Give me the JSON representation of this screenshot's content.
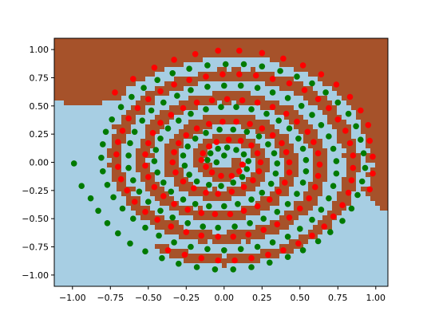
{
  "chart_data": {
    "type": "scatter",
    "description_kind": "two interleaved spirals over a binary classifier decision region map",
    "xlim": [
      -1.12,
      1.08
    ],
    "ylim": [
      -1.1,
      1.1
    ],
    "x_ticks": [
      -1.0,
      -0.75,
      -0.5,
      -0.25,
      0.0,
      0.25,
      0.5,
      0.75,
      1.0
    ],
    "x_tick_labels": [
      "−1.00",
      "−0.75",
      "−0.50",
      "−0.25",
      "0.00",
      "0.25",
      "0.50",
      "0.75",
      "1.00"
    ],
    "y_ticks": [
      1.0,
      0.75,
      0.5,
      0.25,
      0.0,
      -0.25,
      -0.5,
      -0.75,
      -1.0
    ],
    "y_tick_labels": [
      "1.00",
      "0.75",
      "0.50",
      "0.25",
      "0.00",
      "−0.25",
      "−0.50",
      "−0.75",
      "−1.00"
    ],
    "grid": false,
    "legend": "none",
    "colors": {
      "region_class_red": "#a6522a",
      "region_class_green": "#a7cee3",
      "points_red": "#ff0000",
      "points_green": "#007a00"
    },
    "series": [
      {
        "color_key": "points_red",
        "points": [
          [
            0.12,
            -0.02
          ],
          [
            0.1,
            -0.08
          ],
          [
            0.05,
            -0.12
          ],
          [
            -0.02,
            -0.12
          ],
          [
            -0.08,
            -0.09
          ],
          [
            -0.12,
            -0.04
          ],
          [
            -0.15,
            0.02
          ],
          [
            -0.14,
            0.08
          ],
          [
            -0.1,
            0.14
          ],
          [
            -0.05,
            0.18
          ],
          [
            0.03,
            0.2
          ],
          [
            0.11,
            0.19
          ],
          [
            0.18,
            0.15
          ],
          [
            0.22,
            0.08
          ],
          [
            0.24,
            0.0
          ],
          [
            0.23,
            -0.08
          ],
          [
            0.19,
            -0.16
          ],
          [
            0.13,
            -0.22
          ],
          [
            0.05,
            -0.26
          ],
          [
            -0.04,
            -0.28
          ],
          [
            -0.12,
            -0.27
          ],
          [
            -0.2,
            -0.23
          ],
          [
            -0.27,
            -0.17
          ],
          [
            -0.32,
            -0.09
          ],
          [
            -0.34,
            0.0
          ],
          [
            -0.33,
            0.09
          ],
          [
            -0.3,
            0.17
          ],
          [
            -0.25,
            0.24
          ],
          [
            -0.18,
            0.3
          ],
          [
            -0.1,
            0.34
          ],
          [
            -0.01,
            0.36
          ],
          [
            0.08,
            0.36
          ],
          [
            0.17,
            0.34
          ],
          [
            0.25,
            0.3
          ],
          [
            0.32,
            0.24
          ],
          [
            0.38,
            0.17
          ],
          [
            0.41,
            0.09
          ],
          [
            0.43,
            0.0
          ],
          [
            0.43,
            -0.09
          ],
          [
            0.4,
            -0.18
          ],
          [
            0.36,
            -0.26
          ],
          [
            0.3,
            -0.33
          ],
          [
            0.22,
            -0.39
          ],
          [
            0.13,
            -0.43
          ],
          [
            0.04,
            -0.46
          ],
          [
            -0.06,
            -0.46
          ],
          [
            -0.15,
            -0.45
          ],
          [
            -0.24,
            -0.42
          ],
          [
            -0.33,
            -0.37
          ],
          [
            -0.4,
            -0.3
          ],
          [
            -0.46,
            -0.22
          ],
          [
            -0.5,
            -0.13
          ],
          [
            -0.52,
            -0.03
          ],
          [
            -0.52,
            0.07
          ],
          [
            -0.5,
            0.17
          ],
          [
            -0.47,
            0.26
          ],
          [
            -0.42,
            0.35
          ],
          [
            -0.35,
            0.42
          ],
          [
            -0.27,
            0.48
          ],
          [
            -0.18,
            0.53
          ],
          [
            -0.08,
            0.55
          ],
          [
            0.02,
            0.56
          ],
          [
            0.12,
            0.55
          ],
          [
            0.22,
            0.53
          ],
          [
            0.32,
            0.49
          ],
          [
            0.41,
            0.43
          ],
          [
            0.48,
            0.36
          ],
          [
            0.55,
            0.27
          ],
          [
            0.59,
            0.18
          ],
          [
            0.62,
            0.08
          ],
          [
            0.63,
            -0.02
          ],
          [
            0.62,
            -0.12
          ],
          [
            0.6,
            -0.22
          ],
          [
            0.56,
            -0.32
          ],
          [
            0.5,
            -0.41
          ],
          [
            0.43,
            -0.49
          ],
          [
            0.35,
            -0.55
          ],
          [
            0.26,
            -0.6
          ],
          [
            0.16,
            -0.64
          ],
          [
            0.06,
            -0.66
          ],
          [
            -0.04,
            -0.66
          ],
          [
            -0.15,
            -0.65
          ],
          [
            -0.25,
            -0.62
          ],
          [
            -0.35,
            -0.57
          ],
          [
            -0.44,
            -0.51
          ],
          [
            -0.52,
            -0.44
          ],
          [
            -0.59,
            -0.35
          ],
          [
            -0.64,
            -0.25
          ],
          [
            -0.68,
            -0.15
          ],
          [
            -0.7,
            -0.04
          ],
          [
            -0.71,
            0.07
          ],
          [
            -0.7,
            0.18
          ],
          [
            -0.67,
            0.28
          ],
          [
            -0.63,
            0.39
          ],
          [
            -0.57,
            0.48
          ],
          [
            -0.5,
            0.56
          ],
          [
            -0.42,
            0.63
          ],
          [
            -0.33,
            0.69
          ],
          [
            -0.23,
            0.73
          ],
          [
            -0.12,
            0.76
          ],
          [
            -0.01,
            0.78
          ],
          [
            0.1,
            0.78
          ],
          [
            0.21,
            0.77
          ],
          [
            0.32,
            0.74
          ],
          [
            0.43,
            0.7
          ],
          [
            0.53,
            0.64
          ],
          [
            0.62,
            0.56
          ],
          [
            0.69,
            0.48
          ],
          [
            0.75,
            0.38
          ],
          [
            0.8,
            0.28
          ],
          [
            0.83,
            0.17
          ],
          [
            0.85,
            0.06
          ],
          [
            0.85,
            -0.05
          ],
          [
            0.84,
            -0.16
          ],
          [
            0.82,
            -0.27
          ],
          [
            0.78,
            -0.38
          ],
          [
            0.72,
            -0.48
          ],
          [
            0.66,
            -0.57
          ],
          [
            0.58,
            -0.65
          ],
          [
            0.49,
            -0.72
          ],
          [
            0.39,
            -0.78
          ],
          [
            0.29,
            -0.82
          ],
          [
            0.18,
            -0.85
          ],
          [
            0.07,
            -0.87
          ],
          [
            -0.04,
            -0.87
          ],
          [
            -0.15,
            -0.85
          ],
          [
            -0.26,
            -0.82
          ],
          [
            -0.37,
            -0.78
          ],
          [
            0.96,
            0.19
          ],
          [
            -0.72,
            0.62
          ],
          [
            -0.6,
            0.74
          ],
          [
            -0.46,
            0.84
          ],
          [
            -0.33,
            0.91
          ],
          [
            -0.19,
            0.96
          ],
          [
            -0.04,
            0.99
          ],
          [
            0.1,
            0.99
          ],
          [
            0.25,
            0.97
          ],
          [
            0.39,
            0.92
          ],
          [
            0.52,
            0.86
          ],
          [
            0.64,
            0.78
          ],
          [
            0.74,
            0.69
          ],
          [
            0.83,
            0.58
          ],
          [
            0.9,
            0.46
          ],
          [
            0.95,
            0.33
          ],
          [
            0.98,
            0.05
          ],
          [
            0.98,
            -0.1
          ],
          [
            0.96,
            -0.24
          ]
        ]
      },
      {
        "color_key": "points_green",
        "points": [
          [
            -0.11,
            0.02
          ],
          [
            -0.09,
            0.08
          ],
          [
            -0.04,
            0.12
          ],
          [
            0.02,
            0.13
          ],
          [
            0.08,
            0.11
          ],
          [
            0.13,
            0.07
          ],
          [
            0.16,
            0.01
          ],
          [
            -0.05,
            0.0
          ],
          [
            0.0,
            0.06
          ],
          [
            0.15,
            -0.06
          ],
          [
            0.12,
            -0.13
          ],
          [
            0.06,
            -0.18
          ],
          [
            -0.02,
            -0.21
          ],
          [
            -0.1,
            -0.2
          ],
          [
            -0.18,
            -0.17
          ],
          [
            -0.23,
            -0.11
          ],
          [
            -0.26,
            -0.03
          ],
          [
            -0.27,
            0.06
          ],
          [
            -0.24,
            0.14
          ],
          [
            -0.19,
            0.21
          ],
          [
            -0.12,
            0.26
          ],
          [
            -0.03,
            0.29
          ],
          [
            0.06,
            0.29
          ],
          [
            0.15,
            0.27
          ],
          [
            0.23,
            0.23
          ],
          [
            0.29,
            0.16
          ],
          [
            0.33,
            0.08
          ],
          [
            0.35,
            -0.01
          ],
          [
            0.34,
            -0.1
          ],
          [
            0.31,
            -0.19
          ],
          [
            0.25,
            -0.27
          ],
          [
            0.18,
            -0.33
          ],
          [
            0.09,
            -0.37
          ],
          [
            0.0,
            -0.39
          ],
          [
            -0.1,
            -0.39
          ],
          [
            -0.19,
            -0.37
          ],
          [
            -0.27,
            -0.33
          ],
          [
            -0.35,
            -0.26
          ],
          [
            -0.4,
            -0.18
          ],
          [
            -0.44,
            -0.09
          ],
          [
            -0.46,
            0.01
          ],
          [
            -0.45,
            0.11
          ],
          [
            -0.42,
            0.21
          ],
          [
            -0.37,
            0.3
          ],
          [
            -0.3,
            0.37
          ],
          [
            -0.22,
            0.43
          ],
          [
            -0.12,
            0.47
          ],
          [
            -0.02,
            0.49
          ],
          [
            0.08,
            0.49
          ],
          [
            0.18,
            0.47
          ],
          [
            0.28,
            0.43
          ],
          [
            0.36,
            0.37
          ],
          [
            0.43,
            0.3
          ],
          [
            0.49,
            0.21
          ],
          [
            0.52,
            0.12
          ],
          [
            0.54,
            0.02
          ],
          [
            0.54,
            -0.08
          ],
          [
            0.52,
            -0.18
          ],
          [
            0.48,
            -0.28
          ],
          [
            0.42,
            -0.37
          ],
          [
            0.35,
            -0.44
          ],
          [
            0.26,
            -0.5
          ],
          [
            0.17,
            -0.54
          ],
          [
            0.07,
            -0.57
          ],
          [
            -0.04,
            -0.58
          ],
          [
            -0.14,
            -0.57
          ],
          [
            -0.24,
            -0.54
          ],
          [
            -0.34,
            -0.49
          ],
          [
            -0.42,
            -0.43
          ],
          [
            -0.5,
            -0.35
          ],
          [
            -0.56,
            -0.26
          ],
          [
            -0.6,
            -0.16
          ],
          [
            -0.63,
            -0.05
          ],
          [
            -0.63,
            0.06
          ],
          [
            -0.62,
            0.17
          ],
          [
            -0.59,
            0.27
          ],
          [
            -0.54,
            0.37
          ],
          [
            -0.48,
            0.46
          ],
          [
            -0.4,
            0.53
          ],
          [
            -0.31,
            0.59
          ],
          [
            -0.22,
            0.64
          ],
          [
            -0.11,
            0.67
          ],
          [
            0.0,
            0.68
          ],
          [
            0.11,
            0.68
          ],
          [
            0.22,
            0.66
          ],
          [
            0.32,
            0.62
          ],
          [
            0.42,
            0.57
          ],
          [
            0.51,
            0.5
          ],
          [
            0.58,
            0.42
          ],
          [
            0.64,
            0.33
          ],
          [
            0.69,
            0.23
          ],
          [
            0.72,
            0.12
          ],
          [
            0.74,
            0.01
          ],
          [
            0.74,
            -0.1
          ],
          [
            0.72,
            -0.21
          ],
          [
            0.69,
            -0.32
          ],
          [
            0.64,
            -0.42
          ],
          [
            0.58,
            -0.51
          ],
          [
            0.5,
            -0.59
          ],
          [
            0.42,
            -0.66
          ],
          [
            0.32,
            -0.71
          ],
          [
            0.22,
            -0.75
          ],
          [
            0.11,
            -0.77
          ],
          [
            0.0,
            -0.78
          ],
          [
            -0.11,
            -0.77
          ],
          [
            -0.22,
            -0.75
          ],
          [
            -0.33,
            -0.71
          ],
          [
            -0.43,
            -0.65
          ],
          [
            -0.52,
            -0.58
          ],
          [
            -0.6,
            -0.5
          ],
          [
            -0.67,
            -0.41
          ],
          [
            -0.73,
            -0.31
          ],
          [
            -0.77,
            -0.2
          ],
          [
            -0.8,
            -0.08
          ],
          [
            -0.81,
            0.04
          ],
          [
            -0.8,
            0.16
          ],
          [
            -0.78,
            0.27
          ],
          [
            -0.74,
            0.38
          ],
          [
            -0.68,
            0.49
          ],
          [
            -0.61,
            0.58
          ],
          [
            -0.53,
            0.66
          ],
          [
            -0.44,
            0.73
          ],
          [
            -0.34,
            0.79
          ],
          [
            -0.23,
            0.83
          ],
          [
            -0.11,
            0.86
          ],
          [
            0.01,
            0.87
          ],
          [
            0.13,
            0.87
          ],
          [
            0.25,
            0.85
          ],
          [
            0.37,
            0.81
          ],
          [
            0.48,
            0.76
          ],
          [
            0.58,
            0.7
          ],
          [
            0.67,
            0.62
          ],
          [
            0.75,
            0.53
          ],
          [
            0.82,
            0.43
          ],
          [
            0.87,
            0.32
          ],
          [
            0.9,
            0.2
          ],
          [
            0.92,
            0.08
          ],
          [
            0.93,
            -0.05
          ],
          [
            0.91,
            -0.17
          ],
          [
            0.88,
            -0.29
          ],
          [
            0.84,
            -0.41
          ],
          [
            0.78,
            -0.52
          ],
          [
            0.7,
            -0.62
          ],
          [
            0.62,
            -0.7
          ],
          [
            0.52,
            -0.78
          ],
          [
            0.42,
            -0.84
          ],
          [
            0.3,
            -0.89
          ],
          [
            0.18,
            -0.93
          ],
          [
            0.06,
            -0.95
          ],
          [
            -0.06,
            -0.95
          ],
          [
            -0.18,
            -0.93
          ],
          [
            -0.3,
            -0.9
          ],
          [
            -0.41,
            -0.85
          ],
          [
            -0.52,
            -0.79
          ],
          [
            -0.62,
            -0.72
          ],
          [
            -0.7,
            -0.63
          ],
          [
            -0.77,
            -0.54
          ],
          [
            -0.83,
            -0.43
          ],
          [
            -0.88,
            -0.32
          ],
          [
            -0.94,
            -0.21
          ],
          [
            -0.99,
            -0.01
          ]
        ]
      }
    ]
  }
}
